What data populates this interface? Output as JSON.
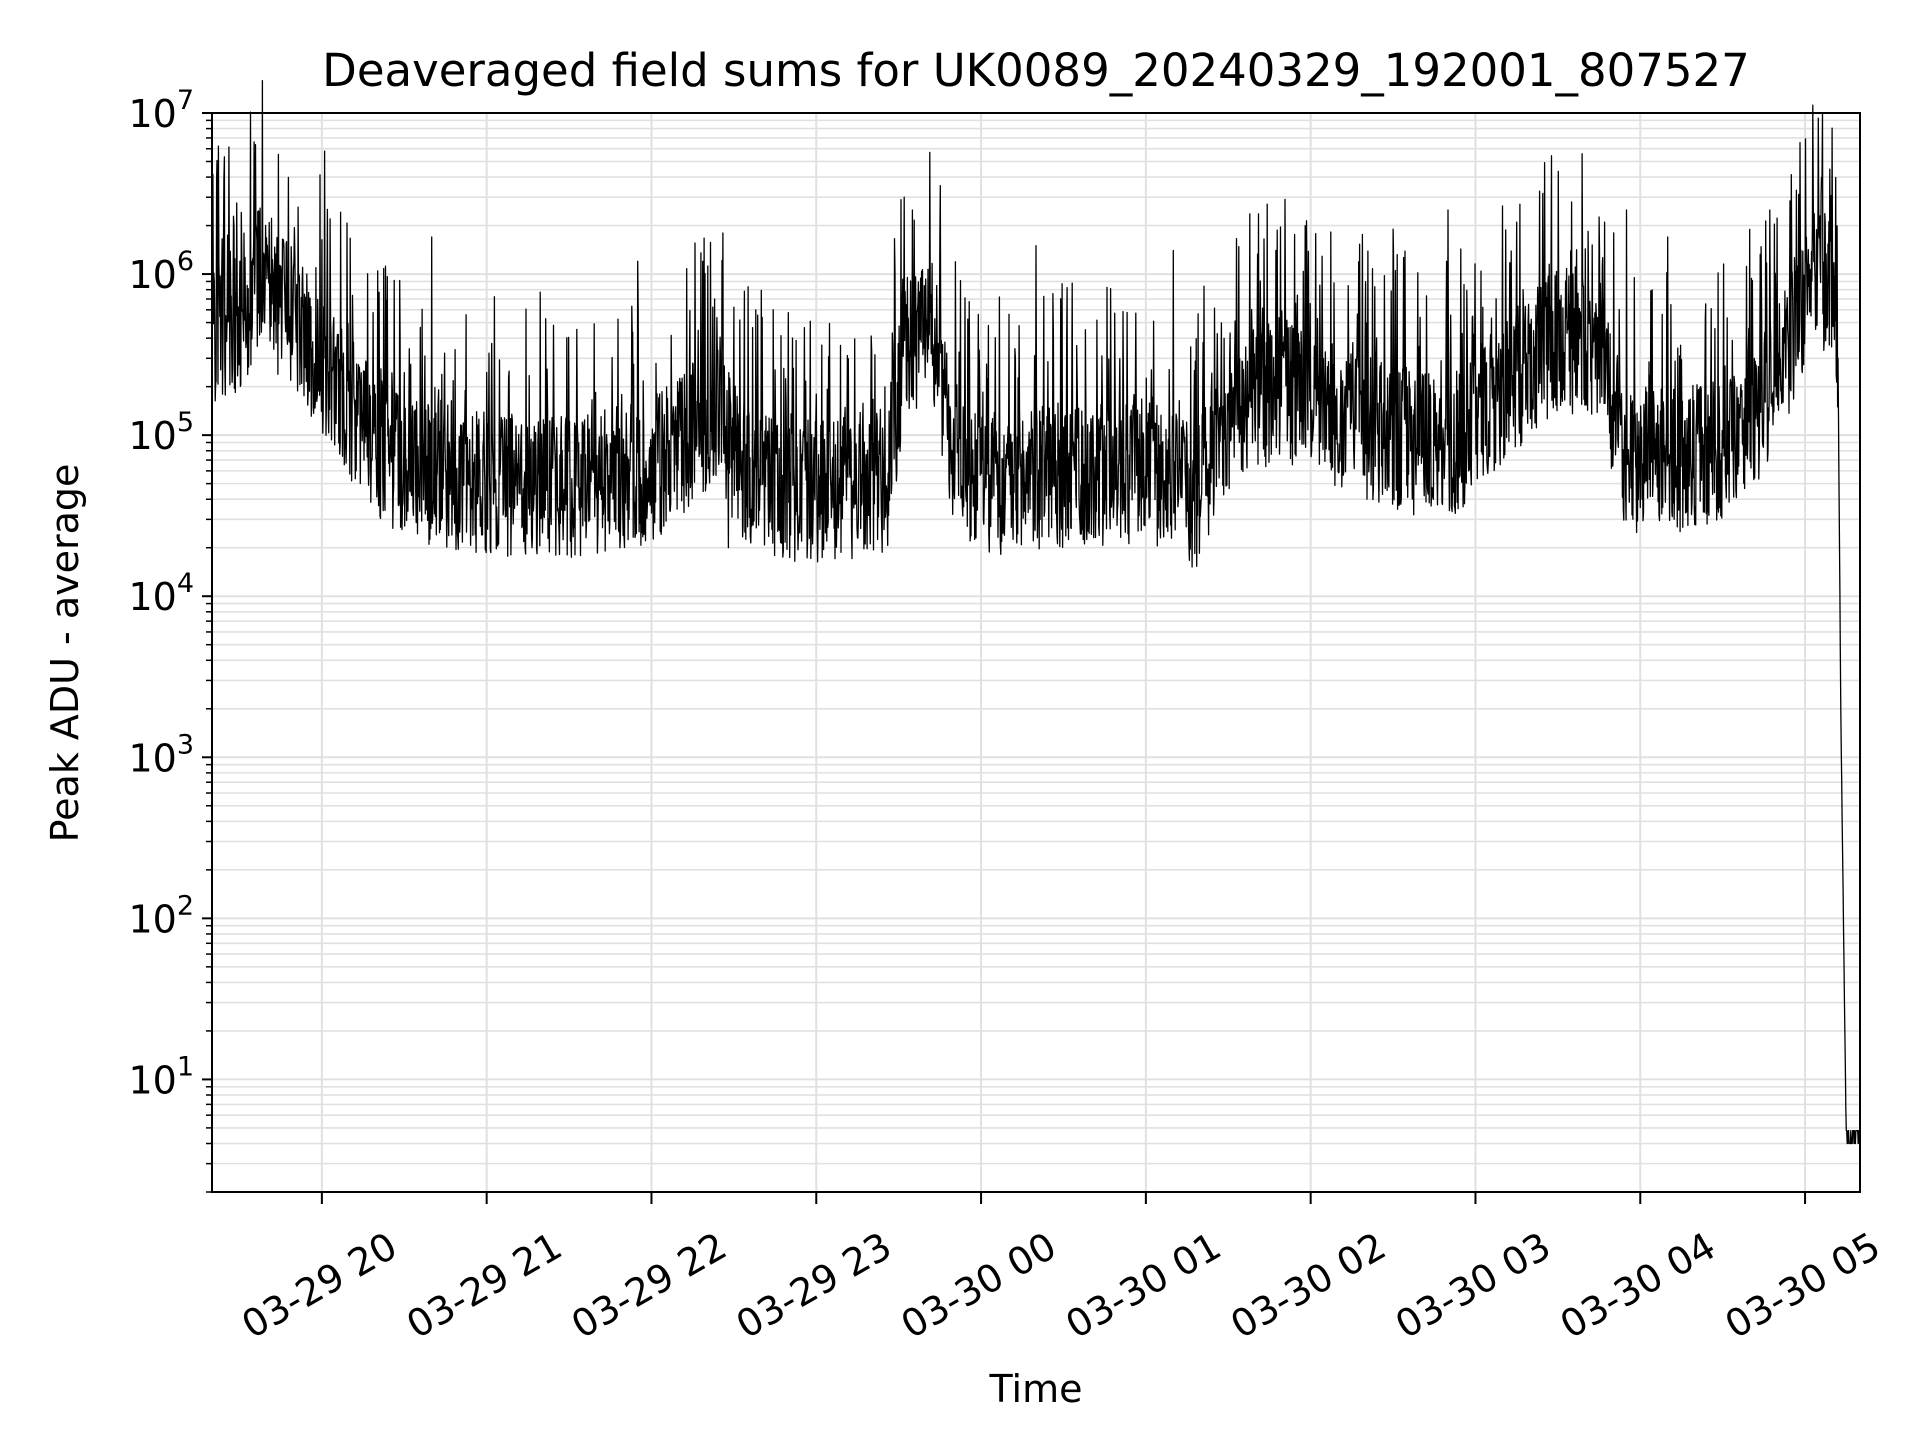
{
  "chart_data": {
    "type": "line",
    "title": "Deaveraged field sums for UK0089_20240329_192001_807527",
    "xlabel": "Time",
    "ylabel": "Peak ADU - average",
    "yscale": "log",
    "ylim": [
      2,
      10000000
    ],
    "xlim": [
      "2024-03-29 19:20",
      "2024-03-30 05:20"
    ],
    "grid": true,
    "line_color": "#000000",
    "grid_color": "#e0e0e0",
    "x_ticks": [
      {
        "t": "2024-03-29 20:00",
        "label": "03-29 20"
      },
      {
        "t": "2024-03-29 21:00",
        "label": "03-29 21"
      },
      {
        "t": "2024-03-29 22:00",
        "label": "03-29 22"
      },
      {
        "t": "2024-03-29 23:00",
        "label": "03-29 23"
      },
      {
        "t": "2024-03-30 00:00",
        "label": "03-30 00"
      },
      {
        "t": "2024-03-30 01:00",
        "label": "03-30 01"
      },
      {
        "t": "2024-03-30 02:00",
        "label": "03-30 02"
      },
      {
        "t": "2024-03-30 03:00",
        "label": "03-30 03"
      },
      {
        "t": "2024-03-30 04:00",
        "label": "03-30 04"
      },
      {
        "t": "2024-03-30 05:00",
        "label": "03-30 05"
      }
    ],
    "y_ticks": [
      {
        "value": 10,
        "base": "10",
        "exp": "1"
      },
      {
        "value": 100,
        "base": "10",
        "exp": "2"
      },
      {
        "value": 1000,
        "base": "10",
        "exp": "3"
      },
      {
        "value": 10000,
        "base": "10",
        "exp": "4"
      },
      {
        "value": 100000,
        "base": "10",
        "exp": "5"
      },
      {
        "value": 1000000,
        "base": "10",
        "exp": "6"
      },
      {
        "value": 10000000,
        "base": "10",
        "exp": "7"
      }
    ],
    "series": [
      {
        "baseline": {
          "x": [
            "2024-03-29 19:20",
            "2024-03-29 19:27",
            "2024-03-29 19:32",
            "2024-03-29 19:38",
            "2024-03-29 19:45",
            "2024-03-29 19:52",
            "2024-03-29 20:00",
            "2024-03-29 20:10",
            "2024-03-29 20:20",
            "2024-03-29 20:30",
            "2024-03-29 21:00",
            "2024-03-29 21:30",
            "2024-03-29 22:00",
            "2024-03-29 22:25",
            "2024-03-29 22:32",
            "2024-03-29 22:45",
            "2024-03-29 23:00",
            "2024-03-29 23:25",
            "2024-03-29 23:33",
            "2024-03-29 23:42",
            "2024-03-29 23:50",
            "2024-03-30 00:00",
            "2024-03-30 00:30",
            "2024-03-30 01:00",
            "2024-03-30 01:12",
            "2024-03-30 01:18",
            "2024-03-30 01:25",
            "2024-03-30 01:35",
            "2024-03-30 01:50",
            "2024-03-30 02:00",
            "2024-03-30 02:20",
            "2024-03-30 02:35",
            "2024-03-30 02:50",
            "2024-03-30 03:00",
            "2024-03-30 03:15",
            "2024-03-30 03:30",
            "2024-03-30 03:45",
            "2024-03-30 03:55",
            "2024-03-30 04:15",
            "2024-03-30 04:30",
            "2024-03-30 04:45",
            "2024-03-30 04:55",
            "2024-03-30 05:00",
            "2024-03-30 05:05",
            "2024-03-30 05:08",
            "2024-03-30 05:10",
            "2024-03-30 05:12",
            "2024-03-30 05:13",
            "2024-03-30 05:15",
            "2024-03-30 05:20"
          ],
          "y": [
            450000,
            480000,
            500000,
            1200000,
            600000,
            500000,
            250000,
            150000,
            90000,
            60000,
            50000,
            48000,
            60000,
            150000,
            60000,
            45000,
            45000,
            45000,
            350000,
            500000,
            80000,
            50000,
            55000,
            60000,
            48000,
            40000,
            80000,
            150000,
            200000,
            150000,
            110000,
            90000,
            80000,
            120000,
            220000,
            400000,
            350000,
            70000,
            70000,
            80000,
            150000,
            400000,
            700000,
            900000,
            850000,
            600000,
            300000,
            2000,
            4,
            4
          ]
        },
        "noise": 0.45,
        "spikes": [
          {
            "t": "2024-03-29 20:01",
            "y": 5800000
          },
          {
            "t": "2024-03-29 20:03",
            "y": 2200000
          },
          {
            "t": "2024-03-29 19:53",
            "y": 1100000
          },
          {
            "t": "2024-03-29 20:40",
            "y": 1700000
          },
          {
            "t": "2024-03-29 21:55",
            "y": 1200000
          },
          {
            "t": "2024-03-29 22:26",
            "y": 1800000
          },
          {
            "t": "2024-03-29 23:32",
            "y": 3000000
          },
          {
            "t": "2024-03-29 23:35",
            "y": 2500000
          },
          {
            "t": "2024-03-29 23:45",
            "y": 1800000
          },
          {
            "t": "2024-03-30 00:20",
            "y": 1500000
          },
          {
            "t": "2024-03-30 01:10",
            "y": 1400000
          },
          {
            "t": "2024-03-30 01:58",
            "y": 2000000
          },
          {
            "t": "2024-03-30 02:30",
            "y": 1900000
          },
          {
            "t": "2024-03-30 02:50",
            "y": 2500000
          },
          {
            "t": "2024-03-30 03:15",
            "y": 2100000
          },
          {
            "t": "2024-03-30 03:35",
            "y": 2800000
          },
          {
            "t": "2024-03-30 03:55",
            "y": 2500000
          },
          {
            "t": "2024-03-30 04:10",
            "y": 1700000
          },
          {
            "t": "2024-03-30 05:03",
            "y": 2700000
          }
        ],
        "dips": [
          {
            "t": "2024-03-29 21:14",
            "y": 20000
          },
          {
            "t": "2024-03-29 22:28",
            "y": 20000
          },
          {
            "t": "2024-03-29 23:58",
            "y": 24000
          },
          {
            "t": "2024-03-30 04:20",
            "y": 36000
          }
        ]
      }
    ]
  }
}
